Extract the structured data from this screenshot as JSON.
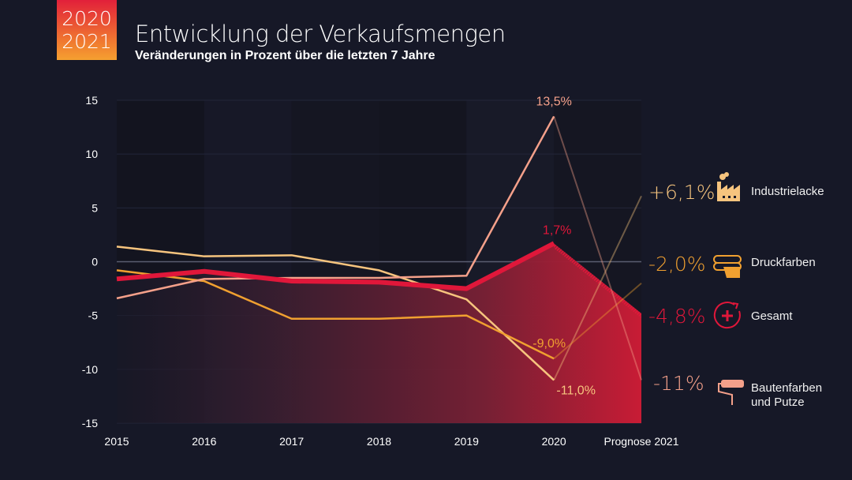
{
  "badge": {
    "line1": "2020",
    "line2": "2021"
  },
  "header": {
    "title": "Entwicklung der Verkaufsmengen",
    "subtitle": "Veränderungen in Prozent über die letzten 7 Jahre"
  },
  "chart_data": {
    "type": "line",
    "title": "Entwicklung der Verkaufsmengen",
    "subtitle": "Veränderungen in Prozent über die letzten 7 Jahre",
    "xlabel": "",
    "ylabel": "",
    "categories": [
      "2015",
      "2016",
      "2017",
      "2018",
      "2019",
      "2020",
      "Prognose 2021"
    ],
    "ylim": [
      -15,
      15
    ],
    "yticks": [
      15,
      10,
      5,
      0,
      -5,
      -10,
      -15
    ],
    "grid": true,
    "legend_placement": "right",
    "series": [
      {
        "name": "Industrielacke",
        "color": "#f6c47e",
        "values": [
          1.4,
          0.5,
          0.6,
          -0.8,
          -3.5,
          -11.0,
          6.1
        ],
        "end_label": "+6,1%",
        "icon": "factory-icon"
      },
      {
        "name": "Druckfarben",
        "color": "#f0a030",
        "values": [
          -0.8,
          -1.8,
          -5.3,
          -5.3,
          -5.0,
          -9.0,
          -2.0
        ],
        "end_label": "-2,0%",
        "icon": "printing-rollers-icon"
      },
      {
        "name": "Gesamt",
        "color": "#e0173a",
        "values": [
          -1.6,
          -0.9,
          -1.8,
          -1.9,
          -2.5,
          1.7,
          -4.8
        ],
        "end_label": "-4,8%",
        "icon": "circle-plus-icon",
        "area": true
      },
      {
        "name": "Bautenfarben und Putze",
        "name_line1": "Bautenfarben",
        "name_line2": "und Putze",
        "color": "#f4a08a",
        "values": [
          -3.4,
          -1.6,
          -1.5,
          -1.5,
          -1.3,
          13.5,
          -11.0
        ],
        "end_label": "-11%",
        "icon": "paint-roller-icon"
      }
    ],
    "annotations": [
      {
        "series": "Bautenfarben und Putze",
        "category": "2020",
        "text": "13,5%"
      },
      {
        "series": "Gesamt",
        "category": "2020",
        "text": "1,7%"
      },
      {
        "series": "Druckfarben",
        "category": "2020",
        "text": "-9,0%"
      },
      {
        "series": "Industrielacke",
        "category": "2020",
        "text": "-11,0%"
      }
    ]
  }
}
